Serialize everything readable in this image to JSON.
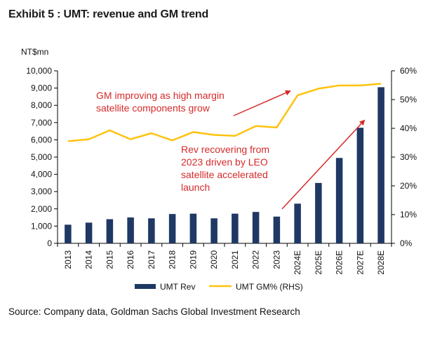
{
  "title": "Exhibit 5 : UMT: revenue and GM trend",
  "source": "Source: Company data, Goldman Sachs Global Investment Research",
  "chart_data": {
    "type": "bar",
    "unit_label": "NT$mn",
    "categories": [
      "2013",
      "2014",
      "2015",
      "2016",
      "2017",
      "2018",
      "2019",
      "2020",
      "2021",
      "2022",
      "2023",
      "2024E",
      "2025E",
      "2026E",
      "2027E",
      "2028E"
    ],
    "series": [
      {
        "name": "UMT Rev",
        "type": "bar",
        "axis": "left",
        "color": "#1f3864",
        "values": [
          1080,
          1200,
          1400,
          1500,
          1450,
          1700,
          1720,
          1450,
          1720,
          1820,
          1550,
          2300,
          3500,
          4950,
          6700,
          9050
        ]
      },
      {
        "name": "UMT GM% (RHS)",
        "type": "line",
        "axis": "right",
        "color": "#ffc20e",
        "values": [
          35.5,
          36.2,
          39.3,
          36.2,
          38.3,
          35.8,
          38.7,
          37.7,
          37.4,
          40.8,
          40.3,
          51.5,
          53.8,
          54.9,
          54.9,
          55.5
        ]
      }
    ],
    "ylim_left": [
      0,
      10000
    ],
    "yticks_left": [
      "0",
      "1,000",
      "2,000",
      "3,000",
      "4,000",
      "5,000",
      "6,000",
      "7,000",
      "8,000",
      "9,000",
      "10,000"
    ],
    "ylim_right": [
      0,
      60
    ],
    "yticks_right": [
      "0%",
      "10%",
      "20%",
      "30%",
      "40%",
      "50%",
      "60%"
    ],
    "annotations": [
      {
        "lines": [
          "GM improving as high margin",
          "satellite components grow"
        ]
      },
      {
        "lines": [
          "Rev recovering from",
          "2023 driven by LEO",
          "satellite accelerated",
          "launch"
        ]
      }
    ],
    "annotation_color": "#d62a2a",
    "legend_position": "bottom",
    "grid": false
  }
}
